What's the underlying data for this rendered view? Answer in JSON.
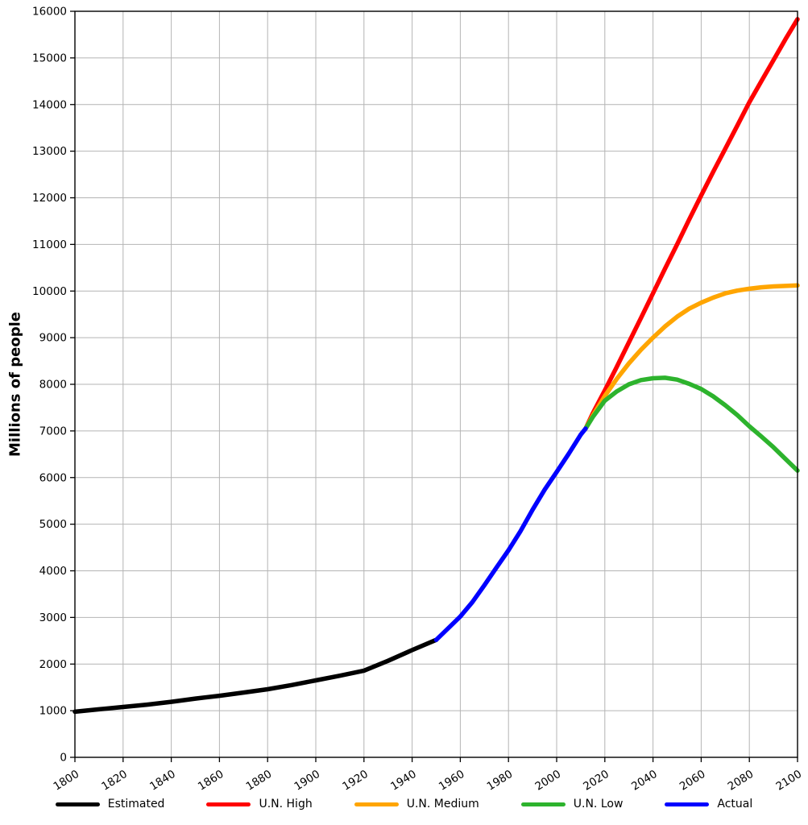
{
  "chart_data": {
    "type": "line",
    "title": "",
    "xlabel": "",
    "ylabel": "Millions of people",
    "xlim": [
      1800,
      2100
    ],
    "ylim": [
      0,
      16000
    ],
    "grid": true,
    "legend_position": "bottom",
    "x_ticks": [
      1800,
      1820,
      1840,
      1860,
      1880,
      1900,
      1920,
      1940,
      1960,
      1980,
      2000,
      2020,
      2040,
      2060,
      2080,
      2100
    ],
    "y_ticks": [
      0,
      1000,
      2000,
      3000,
      4000,
      5000,
      6000,
      7000,
      8000,
      9000,
      10000,
      11000,
      12000,
      13000,
      14000,
      15000,
      16000
    ],
    "grid_color": "#b4b4b4",
    "series": [
      {
        "name": "Estimated",
        "color": "#000000",
        "x": [
          1800,
          1810,
          1820,
          1830,
          1840,
          1850,
          1860,
          1870,
          1880,
          1890,
          1900,
          1910,
          1920,
          1930,
          1940,
          1950
        ],
        "y": [
          978,
          1030,
          1080,
          1130,
          1190,
          1260,
          1320,
          1390,
          1460,
          1550,
          1650,
          1750,
          1860,
          2070,
          2300,
          2520
        ]
      },
      {
        "name": "U.N. High",
        "color": "#ff0000",
        "x": [
          2012,
          2015,
          2020,
          2025,
          2030,
          2035,
          2040,
          2045,
          2050,
          2055,
          2060,
          2065,
          2070,
          2075,
          2080,
          2085,
          2090,
          2095,
          2100
        ],
        "y": [
          7050,
          7380,
          7870,
          8380,
          8900,
          9420,
          9950,
          10480,
          11000,
          11530,
          12050,
          12560,
          13050,
          13550,
          14050,
          14500,
          14950,
          15400,
          15830
        ]
      },
      {
        "name": "U.N. Medium",
        "color": "#ffa500",
        "x": [
          2012,
          2015,
          2020,
          2025,
          2030,
          2035,
          2040,
          2045,
          2050,
          2055,
          2060,
          2065,
          2070,
          2075,
          2080,
          2085,
          2090,
          2095,
          2100
        ],
        "y": [
          7050,
          7330,
          7750,
          8120,
          8450,
          8740,
          9000,
          9240,
          9450,
          9620,
          9750,
          9860,
          9950,
          10010,
          10050,
          10080,
          10100,
          10110,
          10120
        ]
      },
      {
        "name": "U.N. Low",
        "color": "#2db32d",
        "x": [
          2012,
          2015,
          2020,
          2025,
          2030,
          2035,
          2040,
          2045,
          2050,
          2055,
          2060,
          2065,
          2070,
          2075,
          2080,
          2085,
          2090,
          2095,
          2100
        ],
        "y": [
          7050,
          7300,
          7650,
          7850,
          8000,
          8090,
          8130,
          8140,
          8100,
          8010,
          7900,
          7740,
          7550,
          7340,
          7100,
          6880,
          6650,
          6400,
          6150
        ]
      },
      {
        "name": "Actual",
        "color": "#0000ff",
        "x": [
          1950,
          1955,
          1960,
          1965,
          1970,
          1975,
          1980,
          1985,
          1990,
          1995,
          2000,
          2005,
          2010,
          2012
        ],
        "y": [
          2520,
          2770,
          3020,
          3330,
          3690,
          4070,
          4440,
          4850,
          5310,
          5740,
          6120,
          6510,
          6920,
          7050
        ]
      }
    ],
    "legend_order": [
      "Estimated",
      "U.N. High",
      "U.N. Medium",
      "U.N. Low",
      "Actual"
    ]
  }
}
